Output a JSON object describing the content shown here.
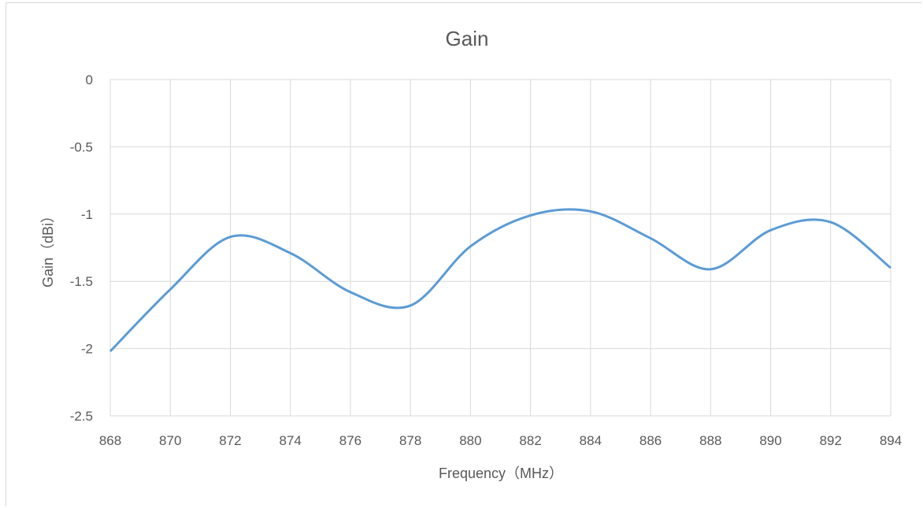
{
  "chart_data": {
    "type": "line",
    "title": "Gain",
    "xlabel": "Frequency（MHz）",
    "ylabel": "Gain（dBi）",
    "xlim": [
      868,
      894
    ],
    "ylim": [
      -2.5,
      0
    ],
    "x_ticks": [
      "868",
      "870",
      "872",
      "874",
      "876",
      "878",
      "880",
      "882",
      "884",
      "886",
      "888",
      "890",
      "892",
      "894"
    ],
    "y_ticks": [
      "0",
      "-0.5",
      "-1",
      "-1.5",
      "-2",
      "-2.5"
    ],
    "grid": true,
    "line_color": "#5b9bd5",
    "series": [
      {
        "x": [
          868,
          870,
          872,
          874,
          876,
          878,
          880,
          882,
          884,
          886,
          888,
          890,
          892,
          894
        ],
        "values": [
          -2.02,
          -1.56,
          -1.17,
          -1.29,
          -1.58,
          -1.68,
          -1.24,
          -1.01,
          -0.98,
          -1.18,
          -1.41,
          -1.12,
          -1.06,
          -1.4
        ]
      }
    ]
  }
}
